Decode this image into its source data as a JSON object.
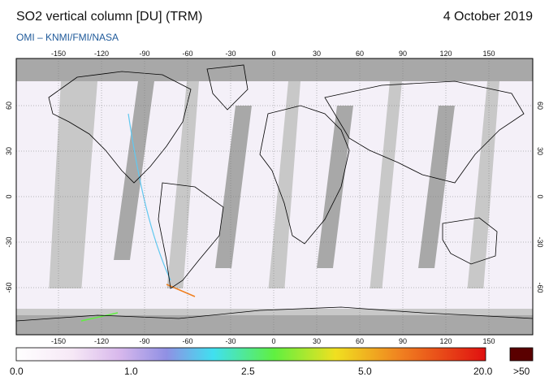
{
  "header": {
    "title": "SO2 vertical column [DU] (TRM)",
    "date": "4 October 2019",
    "credit": "OMI  –  KNMI/FMI/NASA"
  },
  "map": {
    "lon_ticks": [
      "-150",
      "-120",
      "-90",
      "-60",
      "-30",
      "0",
      "30",
      "60",
      "90",
      "120",
      "150"
    ],
    "lat_ticks": [
      "60",
      "30",
      "0",
      "-30",
      "-60"
    ],
    "colors": {
      "no_data": "#c8c8c8",
      "swath_gap": "#a8a8a8",
      "low_so2": "#f4f0f8",
      "land_outline": "#000000",
      "grid": "#777777"
    }
  },
  "colorbar": {
    "labels": [
      "0.0",
      "1.0",
      "2.5",
      "5.0",
      "20.0"
    ],
    "over_label": ">50",
    "stops": [
      "#ffffff",
      "#f0d8f0",
      "#9080e0",
      "#40e0f0",
      "#60f040",
      "#f0e020",
      "#f08020",
      "#e01010",
      "#a00000"
    ],
    "over_color": "#5a0000"
  }
}
